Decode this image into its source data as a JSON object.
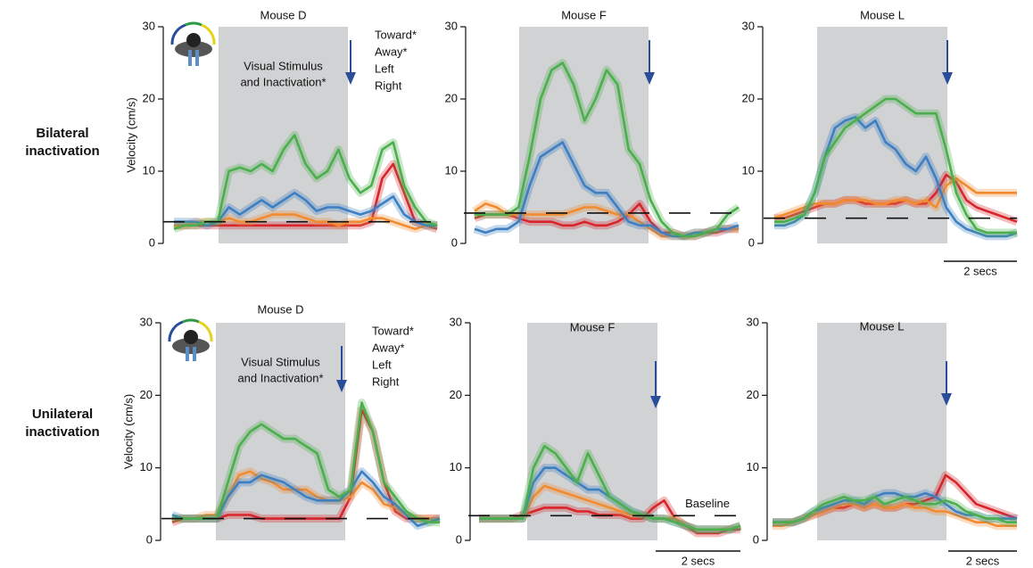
{
  "row_labels": [
    [
      "Bilateral",
      "inactivation"
    ],
    [
      "Unilateral",
      "inactivation"
    ]
  ],
  "chart_data": [
    {
      "type": "line",
      "title": "Mouse D",
      "ylabel": "Velocity (cm/s)",
      "ylim": [
        0,
        30
      ],
      "yticks": [
        0,
        10,
        20,
        30
      ],
      "baseline": 3,
      "annotation": [
        "Visual Stimulus",
        "and Inactivation*"
      ],
      "legend": "upper right",
      "series": [
        {
          "name": "Toward*",
          "color": "#d7262b",
          "values": [
            2.5,
            2.5,
            2.5,
            2.5,
            2.5,
            2.5,
            2.5,
            2.5,
            2.5,
            2.5,
            2.5,
            2.5,
            2.5,
            2.5,
            2.5,
            2.5,
            2.5,
            2.5,
            3,
            9,
            11,
            7,
            3,
            2.5,
            2
          ]
        },
        {
          "name": "Away*",
          "color": "#f28b30",
          "values": [
            2.5,
            2.5,
            3,
            3,
            3,
            3.5,
            3,
            3,
            3.5,
            4,
            4,
            4,
            3.5,
            3,
            3,
            2.5,
            3,
            3,
            3.5,
            3.5,
            3,
            2.5,
            2,
            2.5,
            2.5
          ]
        },
        {
          "name": "Left",
          "color": "#3d7fc1",
          "values": [
            3,
            3,
            3,
            2.5,
            3,
            5,
            4,
            5,
            6,
            5,
            6,
            7,
            6,
            4.5,
            5,
            5,
            4.5,
            4,
            4.5,
            5.5,
            6.5,
            4,
            3,
            2.5,
            2.5
          ]
        },
        {
          "name": "Right",
          "color": "#4cae4c",
          "values": [
            2,
            2.5,
            2.5,
            3,
            3,
            10,
            10.5,
            10,
            11,
            10,
            13,
            15,
            11,
            9,
            10,
            13,
            9,
            7,
            8,
            13,
            14,
            8,
            5,
            3,
            2.5
          ]
        }
      ]
    },
    {
      "type": "line",
      "title": "Mouse F",
      "ylim": [
        0,
        30
      ],
      "yticks": [
        0,
        10,
        20,
        30
      ],
      "baseline": 4.2,
      "series": [
        {
          "color": "#d7262b",
          "values": [
            3.5,
            4,
            4,
            4,
            3.5,
            3,
            3,
            3,
            2.5,
            2.5,
            3,
            2.5,
            2.5,
            3,
            4,
            5.5,
            3,
            1.5,
            1.5,
            1,
            1,
            1.5,
            1.5,
            2,
            2
          ]
        },
        {
          "color": "#f28b30",
          "values": [
            4.5,
            5.5,
            5,
            4,
            4,
            4,
            4,
            4,
            4,
            4.5,
            5,
            5,
            4.5,
            4,
            4,
            3,
            2,
            1,
            1,
            1,
            1.5,
            1.5,
            2,
            2,
            2
          ]
        },
        {
          "color": "#3d7fc1",
          "values": [
            2,
            1.5,
            2,
            2,
            3,
            8,
            12,
            13,
            14,
            11,
            8,
            7,
            7,
            5,
            3,
            2.5,
            2.5,
            1.5,
            1,
            1,
            1.5,
            1.5,
            2,
            2,
            2.5
          ]
        },
        {
          "color": "#4cae4c",
          "values": [
            4,
            4,
            4,
            4,
            5,
            12,
            20,
            24,
            25,
            22,
            17,
            20,
            24,
            22,
            13,
            11,
            6,
            3,
            1.5,
            1,
            1,
            1.5,
            2,
            4,
            5
          ]
        }
      ]
    },
    {
      "type": "line",
      "title": "Mouse L",
      "ylim": [
        0,
        30
      ],
      "yticks": [
        0,
        10,
        20,
        30
      ],
      "baseline": 3.5,
      "scalebar": "2 secs",
      "series": [
        {
          "color": "#d7262b",
          "values": [
            3.5,
            3.5,
            4,
            4.5,
            5,
            5.5,
            5.5,
            6,
            6,
            5.5,
            5.5,
            5.5,
            5.5,
            6,
            5.5,
            5.5,
            7,
            9.5,
            8.5,
            6,
            5,
            4.5,
            4,
            3.5,
            3
          ]
        },
        {
          "color": "#f28b30",
          "values": [
            3.5,
            4,
            4.5,
            5,
            5.5,
            5.5,
            5.5,
            6,
            6,
            6,
            5.5,
            5.5,
            6,
            6,
            5.5,
            6,
            5,
            8,
            9,
            8,
            7,
            7,
            7,
            7,
            7
          ]
        },
        {
          "color": "#3d7fc1",
          "values": [
            2.5,
            2.5,
            3,
            4,
            7,
            12,
            16,
            17,
            17.5,
            16,
            17,
            14,
            13,
            11,
            10,
            12,
            9,
            5,
            3,
            2,
            1.5,
            1,
            1,
            1,
            1.5
          ]
        },
        {
          "color": "#4cae4c",
          "values": [
            3,
            3,
            3.5,
            4,
            7,
            12,
            14,
            16,
            17,
            18,
            19,
            20,
            20,
            19,
            18,
            18,
            18,
            13,
            7,
            4,
            2,
            1.5,
            1.5,
            1.5,
            1.5
          ]
        }
      ]
    },
    {
      "type": "line",
      "title": "Mouse D",
      "ylabel": "Velocity (cm/s)",
      "ylim": [
        0,
        30
      ],
      "yticks": [
        0,
        10,
        20,
        30
      ],
      "baseline": 3,
      "annotation": [
        "Visual Stimulus",
        "and Inactivation*"
      ],
      "legend": "upper right",
      "series": [
        {
          "name": "Toward*",
          "color": "#d7262b",
          "values": [
            2.5,
            3,
            3,
            3,
            3,
            3.5,
            3.5,
            3.5,
            3,
            3,
            3,
            3,
            3,
            3,
            3,
            3,
            6,
            18,
            15,
            8,
            4,
            3,
            3,
            3,
            3
          ]
        },
        {
          "name": "Away*",
          "color": "#f28b30",
          "values": [
            3,
            3,
            3,
            3.5,
            3.5,
            6,
            9,
            9.5,
            8.5,
            8,
            7,
            7,
            7,
            6,
            5.5,
            5.5,
            6,
            8,
            7,
            5,
            4.5,
            3.5,
            3,
            3,
            3
          ]
        },
        {
          "name": "Left",
          "color": "#3d7fc1",
          "values": [
            3.5,
            3,
            3,
            3,
            3,
            6,
            8,
            8,
            9,
            8.5,
            8,
            7,
            6,
            5.5,
            5.5,
            5.5,
            7,
            9.5,
            8,
            6,
            5,
            3.5,
            2,
            2.5,
            3
          ]
        },
        {
          "name": "Right",
          "color": "#4cae4c",
          "values": [
            3,
            3,
            3,
            3,
            3,
            8,
            13,
            15,
            16,
            15,
            14,
            14,
            13,
            12,
            7,
            6,
            7,
            19,
            15,
            8,
            6,
            4,
            3,
            2.5,
            2.5
          ]
        }
      ]
    },
    {
      "type": "line",
      "title": "Mouse F",
      "ylim": [
        0,
        30
      ],
      "yticks": [
        0,
        10,
        20,
        30
      ],
      "baseline": 3.4,
      "baseline_label": "Baseline",
      "scalebar": "2 secs",
      "series": [
        {
          "color": "#d7262b",
          "values": [
            3,
            3,
            3,
            3,
            3.5,
            4,
            4.5,
            4.5,
            4.5,
            4,
            4,
            3.5,
            3.5,
            3.5,
            3,
            3,
            4.5,
            5.5,
            3,
            2,
            1,
            1,
            1,
            1.5,
            1.5
          ]
        },
        {
          "color": "#f28b30",
          "values": [
            3,
            3,
            3,
            3,
            3,
            6,
            7.5,
            7,
            6.5,
            6,
            5.5,
            5,
            4.5,
            4,
            3.5,
            3.5,
            3,
            3,
            3,
            2,
            1.5,
            1.5,
            1.5,
            1.5,
            2
          ]
        },
        {
          "color": "#3d7fc1",
          "values": [
            3,
            3,
            3,
            3,
            3,
            8,
            10,
            10,
            9,
            8,
            7,
            7,
            6,
            5,
            4,
            3.5,
            3,
            3,
            2.5,
            2,
            1.5,
            1.5,
            1.5,
            1.5,
            2
          ]
        },
        {
          "color": "#4cae4c",
          "values": [
            3,
            3,
            3,
            3,
            3,
            10,
            13,
            12,
            10,
            8,
            12,
            9,
            6,
            5,
            4,
            3.5,
            3,
            3,
            2.5,
            2,
            1.5,
            1.5,
            1.5,
            1.5,
            2
          ]
        }
      ]
    },
    {
      "type": "line",
      "title": "Mouse L",
      "ylim": [
        0,
        30
      ],
      "yticks": [
        0,
        10,
        20,
        30
      ],
      "scalebar": "2 secs",
      "series": [
        {
          "color": "#d7262b",
          "values": [
            2.5,
            2.5,
            2.5,
            3,
            3.5,
            4,
            4.5,
            4.5,
            5,
            4.5,
            5,
            4.5,
            4.5,
            5,
            5,
            5.5,
            6,
            9,
            8,
            6.5,
            5,
            4.5,
            4,
            3.5,
            3
          ]
        },
        {
          "color": "#f28b30",
          "values": [
            2,
            2,
            2.5,
            3,
            3.5,
            4,
            4.5,
            5,
            5,
            4.5,
            5,
            4.5,
            4.5,
            5,
            4.5,
            4.5,
            4,
            4,
            3.5,
            3,
            2.5,
            2.5,
            2,
            2,
            2
          ]
        },
        {
          "color": "#3d7fc1",
          "values": [
            2.5,
            2.5,
            2.5,
            3,
            4,
            4.5,
            5,
            5.5,
            5.5,
            5,
            6,
            6.5,
            6.5,
            6,
            6,
            6.5,
            6,
            5,
            4,
            3.5,
            3.5,
            3,
            3,
            3,
            3
          ]
        },
        {
          "color": "#4cae4c",
          "values": [
            2.5,
            2.5,
            2.5,
            3,
            4,
            5,
            5.5,
            6,
            5.5,
            5.5,
            6,
            5,
            5.5,
            6,
            5.5,
            5,
            5,
            5.5,
            5,
            4,
            3.5,
            3,
            3,
            2.5,
            2.5
          ]
        }
      ]
    }
  ]
}
